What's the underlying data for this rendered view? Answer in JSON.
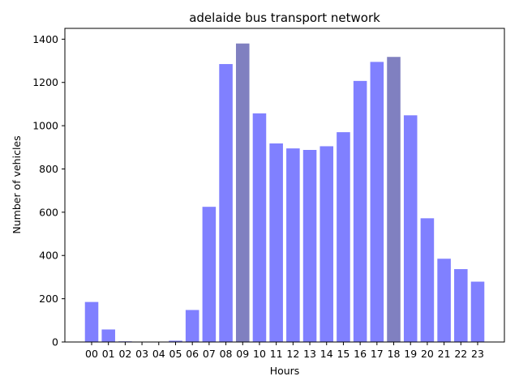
{
  "chart_data": {
    "type": "bar",
    "title": "adelaide bus transport network",
    "xlabel": "Hours",
    "ylabel": "Number of vehicles",
    "categories": [
      "00",
      "01",
      "02",
      "03",
      "04",
      "05",
      "06",
      "07",
      "08",
      "09",
      "10",
      "11",
      "12",
      "13",
      "14",
      "15",
      "16",
      "17",
      "18",
      "19",
      "20",
      "21",
      "22",
      "23"
    ],
    "values": [
      185,
      58,
      3,
      0,
      0,
      6,
      148,
      625,
      1285,
      1380,
      1057,
      918,
      895,
      888,
      905,
      970,
      1207,
      1295,
      1318,
      1048,
      572,
      385,
      337,
      279
    ],
    "highlighted_categories": [
      "09",
      "18"
    ],
    "ylim": [
      0,
      1450
    ],
    "yticks": [
      0,
      200,
      400,
      600,
      800,
      1000,
      1200,
      1400
    ],
    "grid": false,
    "colors": {
      "bar": "#8080ff",
      "bar_highlight": "#8080c0",
      "axis": "#000000"
    }
  }
}
